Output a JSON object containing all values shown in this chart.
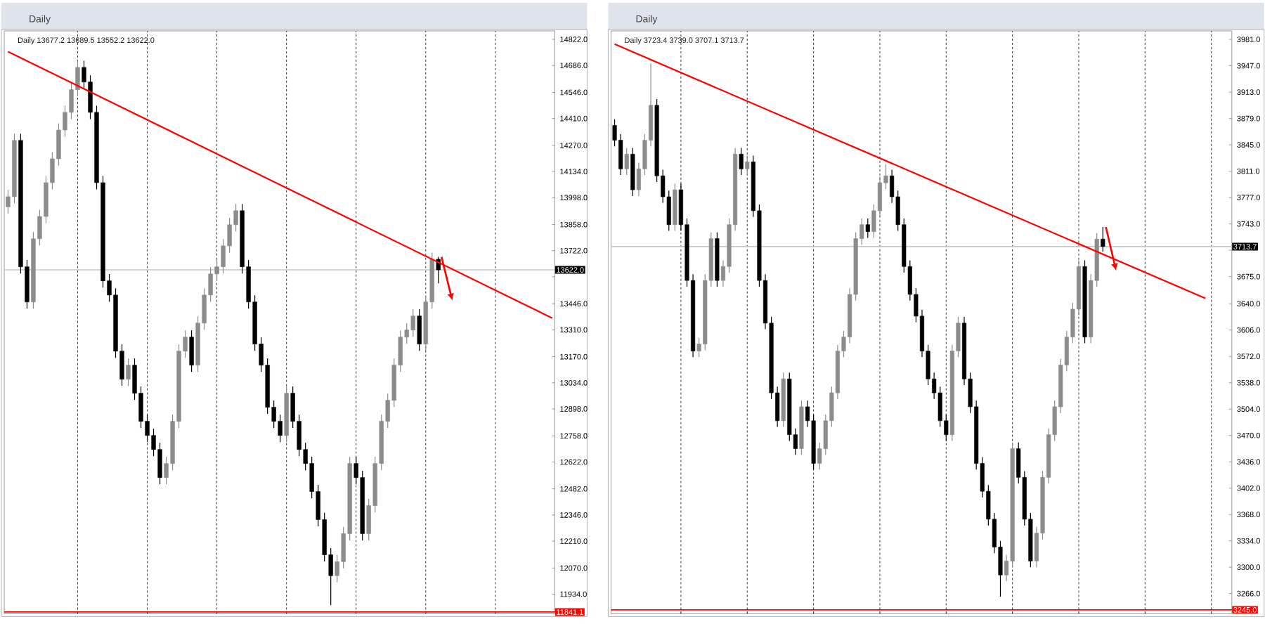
{
  "chart_data": [
    {
      "type": "candlestick",
      "title": "Daily",
      "subtitle": "Daily 13677.2 13689.5 13552.2 13622.0",
      "categories": [
        null,
        null,
        null,
        null,
        null,
        null,
        null,
        null,
        null,
        null,
        null,
        null,
        null,
        null,
        null,
        null,
        null,
        null,
        null,
        null,
        null,
        null,
        null,
        null,
        null,
        null,
        null,
        null,
        null,
        null,
        null,
        null,
        null,
        null,
        null,
        null,
        null,
        null,
        null,
        null,
        null,
        null,
        null,
        null,
        null,
        null,
        null,
        null,
        null,
        null,
        null,
        null,
        null,
        null,
        null,
        null,
        null,
        null,
        null,
        null,
        null,
        null,
        null,
        null,
        null,
        null,
        null,
        null,
        null,
        null,
        null,
        null,
        null,
        null,
        null,
        null,
        null,
        null,
        null,
        null,
        null,
        null,
        null,
        null,
        null,
        null,
        null
      ],
      "ohlc": [
        [
          13950,
          14038,
          13915,
          14003
        ],
        [
          14003,
          14331,
          13968,
          14296
        ],
        [
          14296,
          14331,
          13603,
          13638
        ],
        [
          13638,
          13673,
          13420,
          13455
        ],
        [
          13455,
          13819,
          13420,
          13784
        ],
        [
          13784,
          13935,
          13749,
          13900
        ],
        [
          13900,
          14111,
          13865,
          14076
        ],
        [
          14076,
          14235,
          14041,
          14200
        ],
        [
          14200,
          14385,
          14165,
          14350
        ],
        [
          14350,
          14477,
          14315,
          14442
        ],
        [
          14442,
          14595,
          14407,
          14560
        ],
        [
          14560,
          14711,
          14525,
          14676
        ],
        [
          14676,
          14711,
          14565,
          14600
        ],
        [
          14600,
          14635,
          14407,
          14442
        ],
        [
          14442,
          14477,
          14041,
          14076
        ],
        [
          14076,
          14111,
          13530,
          13565
        ],
        [
          13565,
          13600,
          13456,
          13491
        ],
        [
          13491,
          13526,
          13164,
          13199
        ],
        [
          13199,
          13234,
          13018,
          13053
        ],
        [
          13053,
          13161,
          13018,
          13126
        ],
        [
          13126,
          13161,
          12945,
          12980
        ],
        [
          12980,
          13015,
          12799,
          12834
        ],
        [
          12834,
          12869,
          12725,
          12760
        ],
        [
          12760,
          12795,
          12652,
          12687
        ],
        [
          12687,
          12722,
          12506,
          12541
        ],
        [
          12541,
          12649,
          12506,
          12614
        ],
        [
          12614,
          12869,
          12579,
          12834
        ],
        [
          12834,
          13234,
          12799,
          13199
        ],
        [
          13199,
          13307,
          13164,
          13272
        ],
        [
          13272,
          13307,
          13091,
          13126
        ],
        [
          13126,
          13380,
          13091,
          13345
        ],
        [
          13345,
          13526,
          13310,
          13491
        ],
        [
          13491,
          13636,
          13456,
          13601
        ],
        [
          13601,
          13673,
          13566,
          13638
        ],
        [
          13638,
          13782,
          13603,
          13747
        ],
        [
          13747,
          13892,
          13712,
          13857
        ],
        [
          13857,
          13965,
          13822,
          13930
        ],
        [
          13930,
          13965,
          13603,
          13638
        ],
        [
          13638,
          13673,
          13420,
          13455
        ],
        [
          13455,
          13490,
          13201,
          13236
        ],
        [
          13236,
          13271,
          13091,
          13126
        ],
        [
          13126,
          13161,
          12872,
          12907
        ],
        [
          12907,
          12942,
          12799,
          12834
        ],
        [
          12834,
          12869,
          12725,
          12760
        ],
        [
          12760,
          13015,
          12725,
          12980
        ],
        [
          12980,
          13015,
          12799,
          12834
        ],
        [
          12834,
          12869,
          12652,
          12687
        ],
        [
          12687,
          12722,
          12579,
          12614
        ],
        [
          12614,
          12649,
          12433,
          12468
        ],
        [
          12468,
          12503,
          12287,
          12322
        ],
        [
          12322,
          12357,
          12104,
          12139
        ],
        [
          12139,
          12174,
          11876,
          12030
        ],
        [
          12030,
          12138,
          11995,
          12103
        ],
        [
          12103,
          12284,
          12068,
          12249
        ],
        [
          12249,
          12649,
          12214,
          12614
        ],
        [
          12614,
          12649,
          12506,
          12541
        ],
        [
          12541,
          12576,
          12214,
          12249
        ],
        [
          12249,
          12430,
          12214,
          12395
        ],
        [
          12395,
          12649,
          12360,
          12614
        ],
        [
          12614,
          12869,
          12579,
          12834
        ],
        [
          12834,
          12978,
          12799,
          12943
        ],
        [
          12943,
          13161,
          12908,
          13126
        ],
        [
          13126,
          13307,
          13091,
          13272
        ],
        [
          13272,
          13344,
          13237,
          13309
        ],
        [
          13309,
          13417,
          13274,
          13382
        ],
        [
          13382,
          13417,
          13201,
          13236
        ],
        [
          13236,
          13490,
          13201,
          13455
        ],
        [
          13455,
          13712,
          13420,
          13677.2
        ],
        [
          13677.2,
          13689.5,
          13552.2,
          13622.0
        ],
        null,
        null,
        null,
        null,
        null,
        null,
        null,
        null,
        null,
        null,
        null,
        null,
        null,
        null,
        null,
        null,
        null,
        null
      ],
      "colors": [
        "#8c8c8c",
        "#8c8c8c",
        "#000000",
        "#000000",
        "#8c8c8c",
        "#8c8c8c",
        "#8c8c8c",
        "#8c8c8c",
        "#8c8c8c",
        "#8c8c8c",
        "#8c8c8c",
        "#8c8c8c",
        "#000000",
        "#000000",
        "#000000",
        "#000000",
        "#000000",
        "#000000",
        "#000000",
        "#8c8c8c",
        "#000000",
        "#000000",
        "#000000",
        "#000000",
        "#000000",
        "#8c8c8c",
        "#8c8c8c",
        "#8c8c8c",
        "#8c8c8c",
        "#000000",
        "#8c8c8c",
        "#8c8c8c",
        "#8c8c8c",
        "#8c8c8c",
        "#8c8c8c",
        "#8c8c8c",
        "#8c8c8c",
        "#000000",
        "#000000",
        "#000000",
        "#000000",
        "#000000",
        "#000000",
        "#000000",
        "#8c8c8c",
        "#000000",
        "#000000",
        "#000000",
        "#000000",
        "#000000",
        "#000000",
        "#000000",
        "#8c8c8c",
        "#8c8c8c",
        "#8c8c8c",
        "#000000",
        "#000000",
        "#8c8c8c",
        "#8c8c8c",
        "#8c8c8c",
        "#8c8c8c",
        "#8c8c8c",
        "#8c8c8c",
        "#8c8c8c",
        "#8c8c8c",
        "#000000",
        "#8c8c8c",
        "#8c8c8c",
        "#000000",
        null,
        null,
        null,
        null,
        null,
        null,
        null,
        null,
        null,
        null,
        null,
        null,
        null,
        null,
        null,
        null,
        null,
        null
      ],
      "series": [
        {
          "type": "line",
          "color": "#ff0000",
          "values": [
            14758,
            null,
            null,
            null,
            null,
            null,
            null,
            null,
            null,
            null,
            null,
            null,
            null,
            null,
            null,
            null,
            null,
            null,
            null,
            null,
            null,
            null,
            null,
            null,
            null,
            null,
            null,
            null,
            null,
            null,
            null,
            null,
            null,
            null,
            null,
            null,
            null,
            null,
            null,
            null,
            null,
            null,
            null,
            null,
            null,
            null,
            null,
            null,
            null,
            null,
            null,
            null,
            null,
            null,
            null,
            null,
            null,
            null,
            null,
            null,
            null,
            null,
            null,
            null,
            null,
            null,
            null,
            null,
            null,
            null,
            null,
            null,
            null,
            null,
            null,
            null,
            null,
            null,
            null,
            null,
            null,
            null,
            null,
            null,
            null,
            null,
            13371
          ]
        }
      ],
      "ylim": [
        11832,
        14866
      ],
      "yticks": [
        {
          "value": 14822,
          "label": "14822.0"
        },
        {
          "value": 14686,
          "label": "14686.0"
        },
        {
          "value": 14546,
          "label": "14546.0"
        },
        {
          "value": 14410,
          "label": "14410.0"
        },
        {
          "value": 14270,
          "label": "14270.0"
        },
        {
          "value": 14134,
          "label": "14134.0"
        },
        {
          "value": 13998,
          "label": "13998.0"
        },
        {
          "value": 13858,
          "label": "13858.0"
        },
        {
          "value": 13722,
          "label": "13722.0"
        },
        {
          "value": 13586,
          "label": null
        },
        {
          "value": 13446,
          "label": "13446.0"
        },
        {
          "value": 13310,
          "label": "13310.0"
        },
        {
          "value": 13170,
          "label": "13170.0"
        },
        {
          "value": 13034,
          "label": "13034.0"
        },
        {
          "value": 12898,
          "label": "12898.0"
        },
        {
          "value": 12758,
          "label": "12758.0"
        },
        {
          "value": 12622,
          "label": "12622.0"
        },
        {
          "value": 12482,
          "label": "12482.0"
        },
        {
          "value": 12346,
          "label": "12346.0"
        },
        {
          "value": 12210,
          "label": "12210.0"
        },
        {
          "value": 12070,
          "label": "12070.0"
        },
        {
          "value": 11934,
          "label": "11934.0"
        }
      ],
      "ref_lines": [
        {
          "axis": "y",
          "value": 13622.0,
          "label": "13622.0",
          "color": "#c8c8c8"
        },
        {
          "axis": "y",
          "value": 11841.1,
          "label": "11841.1",
          "color": "#ff0000"
        }
      ],
      "grid": "x"
    },
    {
      "type": "candlestick",
      "title": "Daily",
      "subtitle": "Daily 3723.4 3739.0 3707.1 3713.7",
      "categories": [
        null,
        null,
        null,
        null,
        null,
        null,
        null,
        null,
        null,
        null,
        null,
        null,
        null,
        null,
        null,
        null,
        null,
        null,
        null,
        null,
        null,
        null,
        null,
        null,
        null,
        null,
        null,
        null,
        null,
        null,
        null,
        null,
        null,
        null,
        null,
        null,
        null,
        null,
        null,
        null,
        null,
        null,
        null,
        null,
        null,
        null,
        null,
        null,
        null,
        null,
        null,
        null,
        null,
        null,
        null,
        null,
        null,
        null,
        null,
        null,
        null,
        null,
        null,
        null,
        null,
        null,
        null,
        null,
        null,
        null,
        null,
        null,
        null,
        null,
        null,
        null,
        null,
        null,
        null,
        null,
        null,
        null,
        null,
        null,
        null,
        null,
        null,
        null,
        null,
        null,
        null,
        null,
        null,
        null,
        null,
        null,
        null,
        null,
        null,
        null,
        null,
        null,
        null
      ],
      "ohlc": [
        [
          3870,
          3878,
          3843,
          3851
        ],
        [
          3851,
          3859,
          3806,
          3814
        ],
        [
          3814,
          3841,
          3806,
          3833
        ],
        [
          3833,
          3841,
          3779,
          3787
        ],
        [
          3787,
          3822,
          3779,
          3814
        ],
        [
          3814,
          3859,
          3806,
          3851
        ],
        [
          3851,
          3950,
          3843,
          3896
        ],
        [
          3896,
          3904,
          3797,
          3805
        ],
        [
          3805,
          3813,
          3770,
          3778
        ],
        [
          3778,
          3786,
          3734,
          3742
        ],
        [
          3742,
          3795,
          3734,
          3787
        ],
        [
          3787,
          3795,
          3734,
          3742
        ],
        [
          3742,
          3750,
          3662,
          3670
        ],
        [
          3670,
          3678,
          3571,
          3579
        ],
        [
          3579,
          3596,
          3571,
          3588
        ],
        [
          3588,
          3678,
          3580,
          3670
        ],
        [
          3670,
          3732,
          3662,
          3724
        ],
        [
          3724,
          3732,
          3662,
          3670
        ],
        [
          3670,
          3696,
          3662,
          3688
        ],
        [
          3688,
          3750,
          3680,
          3742
        ],
        [
          3742,
          3841,
          3734,
          3833
        ],
        [
          3833,
          3841,
          3806,
          3814
        ],
        [
          3814,
          3831,
          3806,
          3823
        ],
        [
          3823,
          3831,
          3752,
          3760
        ],
        [
          3760,
          3768,
          3662,
          3670
        ],
        [
          3670,
          3678,
          3607,
          3615
        ],
        [
          3615,
          3623,
          3517,
          3525
        ],
        [
          3525,
          3533,
          3481,
          3489
        ],
        [
          3489,
          3551,
          3481,
          3543
        ],
        [
          3543,
          3551,
          3463,
          3471
        ],
        [
          3471,
          3479,
          3445,
          3453
        ],
        [
          3453,
          3515,
          3445,
          3507
        ],
        [
          3507,
          3515,
          3481,
          3489
        ],
        [
          3489,
          3497,
          3426,
          3434
        ],
        [
          3434,
          3461,
          3426,
          3453
        ],
        [
          3453,
          3497,
          3445,
          3489
        ],
        [
          3489,
          3533,
          3481,
          3525
        ],
        [
          3525,
          3587,
          3517,
          3579
        ],
        [
          3579,
          3605,
          3571,
          3597
        ],
        [
          3597,
          3660,
          3589,
          3652
        ],
        [
          3652,
          3732,
          3644,
          3724
        ],
        [
          3724,
          3750,
          3716,
          3742
        ],
        [
          3742,
          3750,
          3725,
          3733
        ],
        [
          3733,
          3768,
          3725,
          3760
        ],
        [
          3760,
          3804,
          3752,
          3796
        ],
        [
          3796,
          3820,
          3788,
          3805
        ],
        [
          3805,
          3813,
          3770,
          3778
        ],
        [
          3778,
          3786,
          3734,
          3742
        ],
        [
          3742,
          3750,
          3680,
          3688
        ],
        [
          3688,
          3696,
          3644,
          3652
        ],
        [
          3652,
          3660,
          3616,
          3624
        ],
        [
          3624,
          3632,
          3571,
          3579
        ],
        [
          3579,
          3587,
          3535,
          3543
        ],
        [
          3543,
          3551,
          3517,
          3525
        ],
        [
          3525,
          3533,
          3481,
          3489
        ],
        [
          3489,
          3497,
          3463,
          3471
        ],
        [
          3471,
          3587,
          3463,
          3579
        ],
        [
          3579,
          3623,
          3571,
          3615
        ],
        [
          3615,
          3623,
          3535,
          3543
        ],
        [
          3543,
          3551,
          3499,
          3507
        ],
        [
          3507,
          3515,
          3426,
          3434
        ],
        [
          3434,
          3442,
          3390,
          3398
        ],
        [
          3398,
          3406,
          3354,
          3362
        ],
        [
          3362,
          3370,
          3318,
          3326
        ],
        [
          3326,
          3334,
          3262,
          3290
        ],
        [
          3290,
          3316,
          3282,
          3308
        ],
        [
          3308,
          3461,
          3300,
          3453
        ],
        [
          3453,
          3461,
          3408,
          3416
        ],
        [
          3416,
          3424,
          3354,
          3362
        ],
        [
          3362,
          3370,
          3300,
          3308
        ],
        [
          3308,
          3352,
          3300,
          3344
        ],
        [
          3344,
          3424,
          3336,
          3416
        ],
        [
          3416,
          3479,
          3408,
          3471
        ],
        [
          3471,
          3515,
          3463,
          3507
        ],
        [
          3507,
          3569,
          3499,
          3561
        ],
        [
          3561,
          3605,
          3553,
          3597
        ],
        [
          3597,
          3641,
          3589,
          3633
        ],
        [
          3633,
          3696,
          3625,
          3688
        ],
        [
          3688,
          3696,
          3589,
          3597
        ],
        [
          3597,
          3678,
          3589,
          3670
        ],
        [
          3670,
          3731,
          3662,
          3723.4
        ],
        [
          3723.4,
          3739.0,
          3707.1,
          3713.7
        ],
        null,
        null,
        null,
        null,
        null,
        null,
        null,
        null,
        null,
        null,
        null,
        null,
        null,
        null,
        null,
        null,
        null,
        null,
        null,
        null,
        null
      ],
      "colors": [
        "#000000",
        "#000000",
        "#8c8c8c",
        "#000000",
        "#8c8c8c",
        "#8c8c8c",
        "#8c8c8c",
        "#000000",
        "#000000",
        "#000000",
        "#8c8c8c",
        "#000000",
        "#000000",
        "#000000",
        "#8c8c8c",
        "#8c8c8c",
        "#8c8c8c",
        "#000000",
        "#8c8c8c",
        "#8c8c8c",
        "#8c8c8c",
        "#000000",
        "#8c8c8c",
        "#000000",
        "#000000",
        "#000000",
        "#000000",
        "#000000",
        "#8c8c8c",
        "#000000",
        "#000000",
        "#8c8c8c",
        "#000000",
        "#000000",
        "#8c8c8c",
        "#8c8c8c",
        "#8c8c8c",
        "#8c8c8c",
        "#8c8c8c",
        "#8c8c8c",
        "#8c8c8c",
        "#8c8c8c",
        "#000000",
        "#8c8c8c",
        "#8c8c8c",
        "#8c8c8c",
        "#000000",
        "#000000",
        "#000000",
        "#000000",
        "#000000",
        "#000000",
        "#000000",
        "#000000",
        "#000000",
        "#000000",
        "#8c8c8c",
        "#8c8c8c",
        "#000000",
        "#000000",
        "#000000",
        "#000000",
        "#000000",
        "#000000",
        "#000000",
        "#8c8c8c",
        "#8c8c8c",
        "#000000",
        "#000000",
        "#000000",
        "#8c8c8c",
        "#8c8c8c",
        "#8c8c8c",
        "#8c8c8c",
        "#8c8c8c",
        "#8c8c8c",
        "#8c8c8c",
        "#8c8c8c",
        "#000000",
        "#8c8c8c",
        "#8c8c8c",
        "#000000",
        null,
        null,
        null,
        null,
        null,
        null,
        null,
        null,
        null,
        null,
        null,
        null,
        null,
        null,
        null,
        null,
        null,
        null,
        null,
        null,
        null
      ],
      "series": [
        {
          "type": "line",
          "color": "#ff0000",
          "values": [
            3975,
            null,
            null,
            null,
            null,
            null,
            null,
            null,
            null,
            null,
            null,
            null,
            null,
            null,
            null,
            null,
            null,
            null,
            null,
            null,
            null,
            null,
            null,
            null,
            null,
            null,
            null,
            null,
            null,
            null,
            null,
            null,
            null,
            null,
            null,
            null,
            null,
            null,
            null,
            null,
            null,
            null,
            null,
            null,
            null,
            null,
            null,
            null,
            null,
            null,
            null,
            null,
            null,
            null,
            null,
            null,
            null,
            null,
            null,
            null,
            null,
            null,
            null,
            null,
            null,
            null,
            null,
            null,
            null,
            null,
            null,
            null,
            null,
            null,
            null,
            null,
            null,
            null,
            null,
            null,
            null,
            null,
            null,
            null,
            null,
            null,
            null,
            null,
            null,
            null,
            null,
            null,
            null,
            null,
            null,
            null,
            null,
            null,
            3647,
            null,
            null,
            null,
            null
          ]
        }
      ],
      "ylim": [
        3240,
        3992
      ],
      "yticks": [
        {
          "value": 3981,
          "label": "3981.0"
        },
        {
          "value": 3947,
          "label": "3947.0"
        },
        {
          "value": 3913,
          "label": "3913.0"
        },
        {
          "value": 3879,
          "label": "3879.0"
        },
        {
          "value": 3845,
          "label": "3845.0"
        },
        {
          "value": 3811,
          "label": "3811.0"
        },
        {
          "value": 3777,
          "label": "3777.0"
        },
        {
          "value": 3743,
          "label": "3743.0"
        },
        {
          "value": 3709,
          "label": null
        },
        {
          "value": 3675,
          "label": "3675.0"
        },
        {
          "value": 3640,
          "label": "3640.0"
        },
        {
          "value": 3606,
          "label": "3606.0"
        },
        {
          "value": 3572,
          "label": "3572.0"
        },
        {
          "value": 3538,
          "label": "3538.0"
        },
        {
          "value": 3504,
          "label": "3504.0"
        },
        {
          "value": 3470,
          "label": "3470.0"
        },
        {
          "value": 3436,
          "label": "3436.0"
        },
        {
          "value": 3402,
          "label": "3402.0"
        },
        {
          "value": 3368,
          "label": "3368.0"
        },
        {
          "value": 3334,
          "label": "3334.0"
        },
        {
          "value": 3300,
          "label": "3300.0"
        },
        {
          "value": 3266,
          "label": "3266.0"
        }
      ],
      "ref_lines": [
        {
          "axis": "y",
          "value": 3713.7,
          "label": "3713.7",
          "color": "#c8c8c8"
        },
        {
          "axis": "y",
          "value": 3245.0,
          "label": "3245.0",
          "color": "#ff0000"
        }
      ],
      "grid": "x"
    }
  ]
}
